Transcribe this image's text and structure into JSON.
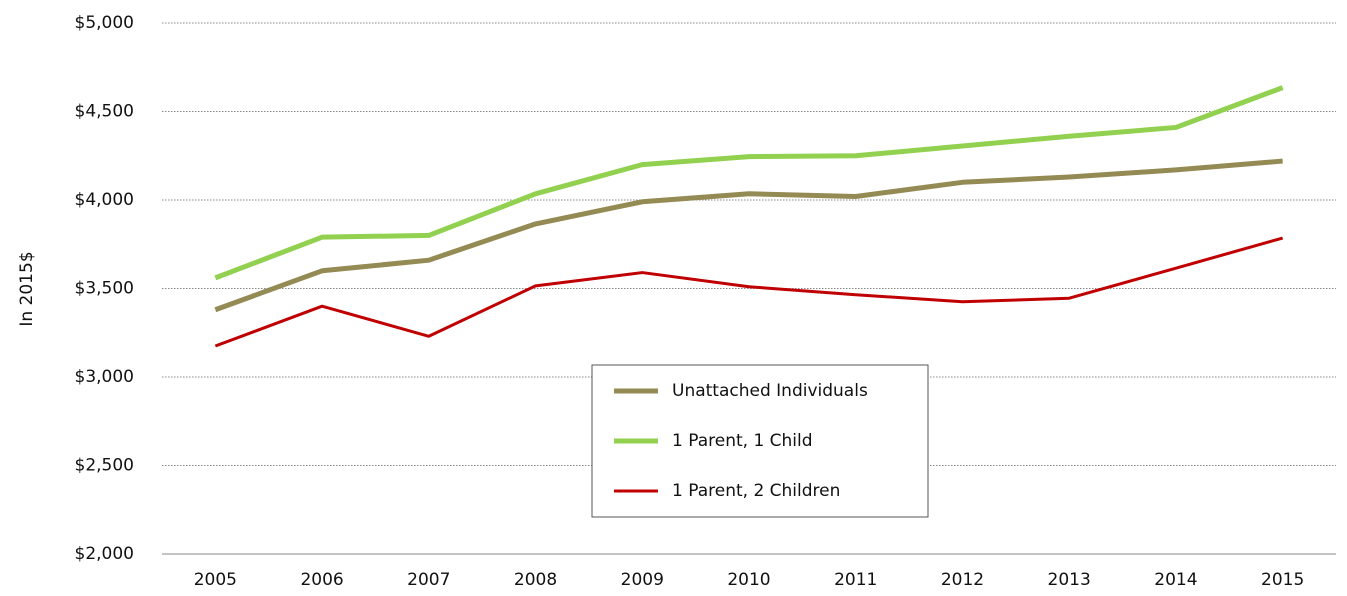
{
  "chart_data": {
    "type": "line",
    "y_label": "In 2015$",
    "categories": [
      "2005",
      "2006",
      "2007",
      "2008",
      "2009",
      "2010",
      "2011",
      "2012",
      "2013",
      "2014",
      "2015"
    ],
    "series": [
      {
        "name": "Unattached Individuals",
        "color": "#948a54",
        "values": [
          3380,
          3600,
          3660,
          3865,
          3990,
          4035,
          4020,
          4100,
          4130,
          4170,
          4220
        ]
      },
      {
        "name": "1 Parent, 1 Child",
        "color": "#92d050",
        "values": [
          3560,
          3790,
          3800,
          4035,
          4200,
          4245,
          4250,
          4305,
          4360,
          4410,
          4635
        ]
      },
      {
        "name": "1 Parent, 2 Children",
        "color": "#c00000",
        "values": [
          3175,
          3400,
          3230,
          3515,
          3590,
          3510,
          3465,
          3425,
          3445,
          3615,
          3785
        ]
      }
    ],
    "ylim": [
      2000,
      5000
    ],
    "yticks": [
      {
        "value": 2000,
        "label": "$2,000"
      },
      {
        "value": 2500,
        "label": "$2,500"
      },
      {
        "value": 3000,
        "label": "$3,000"
      },
      {
        "value": 3500,
        "label": "$3,500"
      },
      {
        "value": 4000,
        "label": "$4,000"
      },
      {
        "value": 4500,
        "label": "$4,500"
      },
      {
        "value": 5000,
        "label": "$5,000"
      }
    ],
    "grid": true,
    "legend": "lower center"
  }
}
